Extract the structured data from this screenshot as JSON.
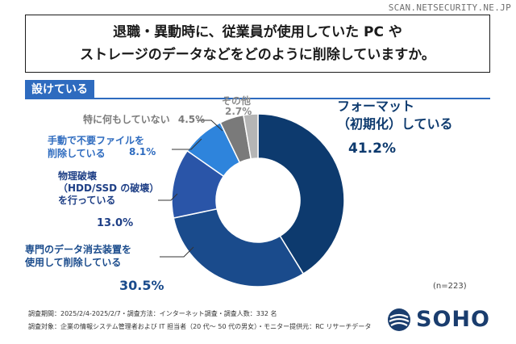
{
  "watermark": "SCAN.NETSECURITY.NE.JP",
  "title": {
    "line1": "退職・異動時に、従業員が使用していた PC や",
    "line2": "ストレージのデータなどをどのように削除していますか。"
  },
  "tag": "設けている",
  "chart_data": {
    "type": "pie",
    "donut": true,
    "categories": [
      "フォーマット（初期化）している",
      "専門のデータ消去装置を使用して削除している",
      "物理破壊（HDD/SSD の破壊）を行っている",
      "手動で不要ファイルを削除している",
      "特に何もしていない",
      "その他"
    ],
    "values": [
      41.2,
      30.5,
      13.0,
      8.1,
      4.5,
      2.7
    ],
    "colors": [
      "#0d3a6e",
      "#1a4b8c",
      "#2a55a8",
      "#2e84dc",
      "#7a7a7a",
      "#b5b5b5"
    ],
    "unit": "%",
    "n": 223
  },
  "labels": {
    "format_line1": "フォーマット",
    "format_line2": "（初期化）している",
    "format_value": "41.2%",
    "other_label": "その他",
    "other_value": "2.7%",
    "nothing_label": "特に何もしていない",
    "nothing_value": "4.5%",
    "manual_line1": "手動で不要ファイルを",
    "manual_line2": "削除している",
    "manual_value": "8.1%",
    "phys_line1": "物理破壊",
    "phys_line2": "（HDD/SSD の破壊）",
    "phys_line3": "を行っている",
    "phys_value": "13.0%",
    "eraser_line1": "専門のデータ消去装置を",
    "eraser_line2": "使用して削除している",
    "eraser_value": "30.5%",
    "n_label": "(n=223)"
  },
  "footer": {
    "line1": "調査期間：2025/2/4-2025/2/7・調査方法：インターネット調査・調査人数：332 名",
    "line2": "調査対象：企業の情報システム管理者および IT 担当者（20 代～ 50 代の男女）・モニター提供元：RC リサーチデータ"
  },
  "logo": {
    "text": "SOHO"
  }
}
